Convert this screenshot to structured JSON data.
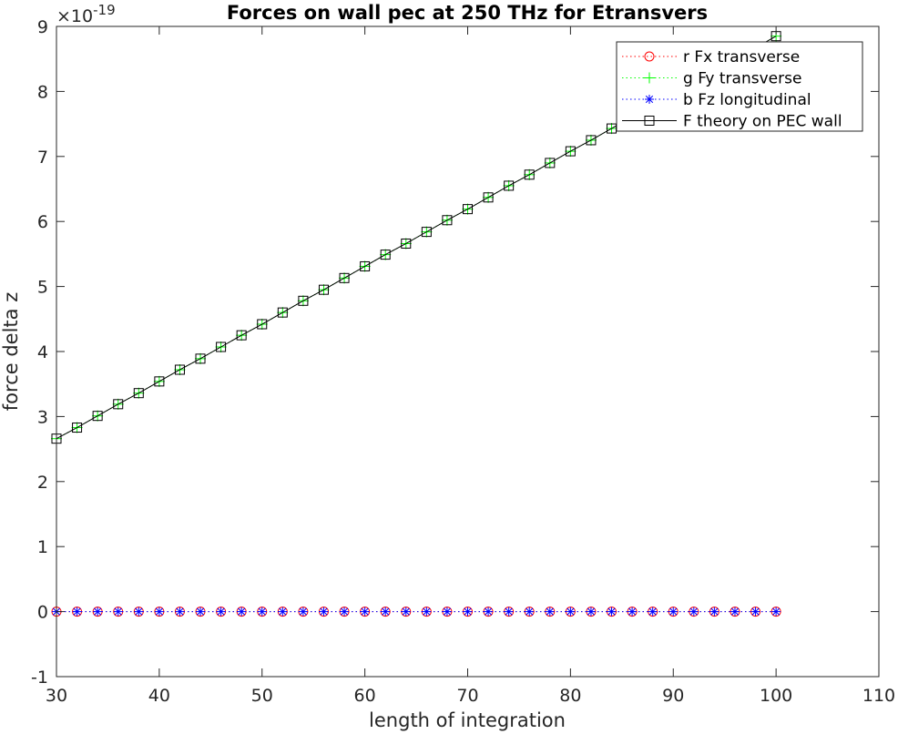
{
  "chart_data": {
    "type": "line",
    "title": "Forces on wall pec at 250 THz for Etransvers",
    "xlabel": "length of integration",
    "ylabel": "force delta z",
    "xlim": [
      30,
      110
    ],
    "ylim": [
      -1,
      9
    ],
    "y_exponent_label": "×10",
    "y_exponent_power": "-19",
    "xticks": [
      "30",
      "40",
      "50",
      "60",
      "70",
      "80",
      "90",
      "100",
      "110"
    ],
    "yticks": [
      "-1",
      "0",
      "1",
      "2",
      "3",
      "4",
      "5",
      "6",
      "7",
      "8",
      "9"
    ],
    "grid": false,
    "legend_position": "top-right",
    "x": [
      30,
      32,
      34,
      36,
      38,
      40,
      42,
      44,
      46,
      48,
      50,
      52,
      54,
      56,
      58,
      60,
      62,
      64,
      66,
      68,
      70,
      72,
      74,
      76,
      78,
      80,
      82,
      84,
      86,
      88,
      90,
      92,
      94,
      96,
      98,
      100
    ],
    "series": [
      {
        "name": "r Fx transverse",
        "color": "#ff0000",
        "marker": "circle",
        "line": "dotted",
        "values": [
          0,
          0,
          0,
          0,
          0,
          0,
          0,
          0,
          0,
          0,
          0,
          0,
          0,
          0,
          0,
          0,
          0,
          0,
          0,
          0,
          0,
          0,
          0,
          0,
          0,
          0,
          0,
          0,
          0,
          0,
          0,
          0,
          0,
          0,
          0,
          0
        ]
      },
      {
        "name": "g Fy transverse",
        "color": "#00ff00",
        "marker": "plus",
        "line": "dotted",
        "values": [
          2.66,
          2.83,
          3.01,
          3.19,
          3.36,
          3.54,
          3.72,
          3.89,
          4.07,
          4.25,
          4.42,
          4.6,
          4.78,
          4.95,
          5.13,
          5.31,
          5.49,
          5.66,
          5.84,
          6.02,
          6.19,
          6.37,
          6.55,
          6.72,
          6.9,
          7.08,
          7.25,
          7.43,
          7.61,
          7.78,
          7.96,
          8.14,
          8.31,
          8.49,
          8.67,
          8.85
        ]
      },
      {
        "name": "b Fz longitudinal",
        "color": "#0000ff",
        "marker": "asterisk",
        "line": "dotted",
        "values": [
          0,
          0,
          0,
          0,
          0,
          0,
          0,
          0,
          0,
          0,
          0,
          0,
          0,
          0,
          0,
          0,
          0,
          0,
          0,
          0,
          0,
          0,
          0,
          0,
          0,
          0,
          0,
          0,
          0,
          0,
          0,
          0,
          0,
          0,
          0,
          0
        ]
      },
      {
        "name": "F theory on PEC wall",
        "color": "#000000",
        "marker": "square",
        "line": "solid",
        "values": [
          2.66,
          2.83,
          3.01,
          3.19,
          3.36,
          3.54,
          3.72,
          3.89,
          4.07,
          4.25,
          4.42,
          4.6,
          4.78,
          4.95,
          5.13,
          5.31,
          5.49,
          5.66,
          5.84,
          6.02,
          6.19,
          6.37,
          6.55,
          6.72,
          6.9,
          7.08,
          7.25,
          7.43,
          7.61,
          7.78,
          7.96,
          8.14,
          8.31,
          8.49,
          8.67,
          8.85
        ]
      }
    ]
  }
}
